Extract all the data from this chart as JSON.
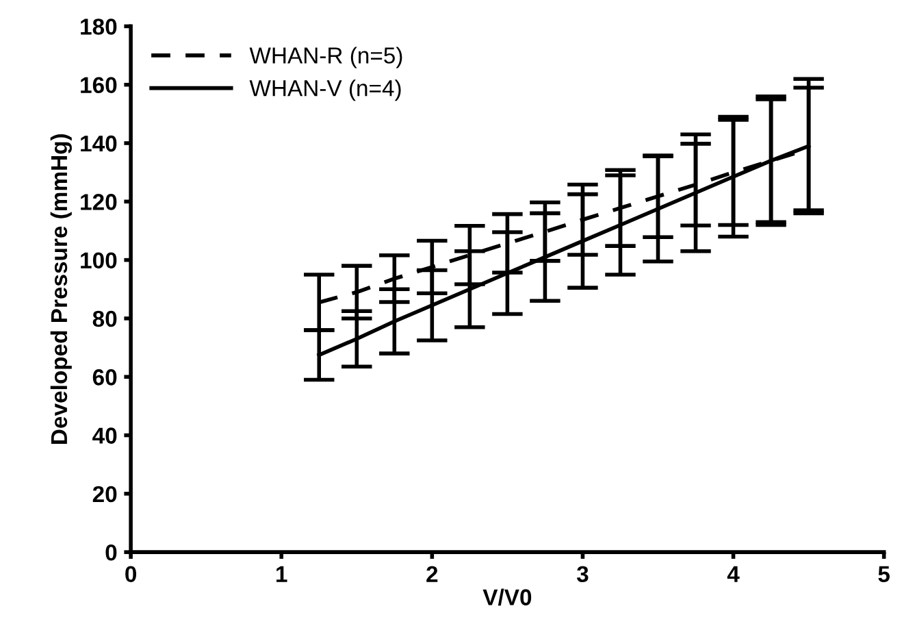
{
  "chart_data": {
    "type": "line",
    "xlabel": "V/V0",
    "ylabel": "Developed Pressure (mmHg)",
    "xlim": [
      0,
      5
    ],
    "xticks": [
      0,
      1,
      2,
      3,
      4,
      5
    ],
    "ylim": [
      0,
      180
    ],
    "yticks": [
      0,
      20,
      40,
      60,
      80,
      100,
      120,
      140,
      160,
      180
    ],
    "grid": false,
    "legend": "top left",
    "marker": "none",
    "series": [
      {
        "name": "WHAN-R (n=5)",
        "color": "#000000",
        "line_style": "dashed",
        "x": [
          1.25,
          1.5,
          1.75,
          2.0,
          2.25,
          2.5,
          2.75,
          3.0,
          3.25,
          3.5,
          3.75,
          4.0,
          4.25,
          4.5
        ],
        "values": [
          85.5,
          89,
          93.6,
          97.6,
          101.7,
          105.7,
          109.7,
          113.8,
          117.8,
          121.8,
          125.8,
          130,
          134,
          138
        ],
        "errors": [
          9.5,
          9,
          8,
          9,
          10,
          10,
          10,
          12,
          13,
          14,
          14,
          18,
          21,
          21
        ]
      },
      {
        "name": "WHAN-V (n=4)",
        "color": "#000000",
        "line_style": "solid",
        "x": [
          1.25,
          1.5,
          1.75,
          2.0,
          2.25,
          2.5,
          2.75,
          3.0,
          3.25,
          3.5,
          3.75,
          4.0,
          4.25,
          4.5
        ],
        "values": [
          67.5,
          73,
          79,
          84.5,
          90,
          95.5,
          101,
          106.5,
          112,
          117.5,
          123,
          128.5,
          134,
          139
        ],
        "errors": [
          8.5,
          9.5,
          11,
          12,
          13,
          14,
          15,
          16,
          17,
          18,
          20,
          20.5,
          22,
          23
        ]
      }
    ]
  }
}
